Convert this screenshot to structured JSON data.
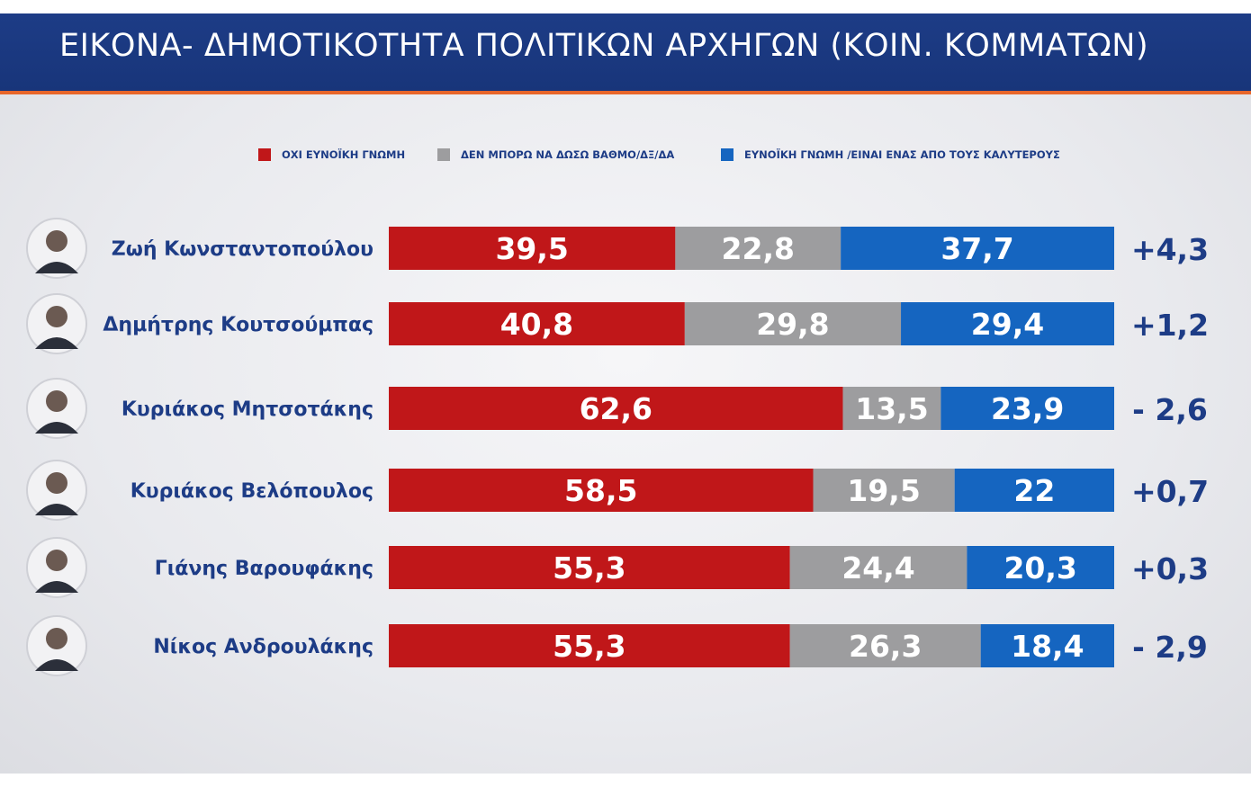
{
  "header": {
    "title": "ΕΙΚΟΝΑ- ΔΗΜΟΤΙΚΟΤΗΤΑ ΠΟΛΙΤΙΚΩΝ ΑΡΧΗΓΩΝ (ΚΟΙΝ. ΚΟΜΜΑΤΩΝ)"
  },
  "colors": {
    "negative": "#c01719",
    "neutral": "#9d9d9f",
    "positive": "#1565c0",
    "label": "#1d3c86",
    "header": "#1d3c86",
    "accent": "#e8662a"
  },
  "legend": [
    {
      "label": "ΟΧΙ ΕΥΝΟΪΚΗ ΓΝΩΜΗ",
      "color": "#c01719"
    },
    {
      "label": "ΔΕΝ ΜΠΟΡΩ ΝΑ ΔΩΣΩ ΒΑΘΜΟ/ΔΞ/ΔΑ",
      "color": "#9d9d9f"
    },
    {
      "label": "ΕΥΝΟΪΚΗ ΓΝΩΜΗ /ΕΙΝΑΙ ΕΝΑΣ ΑΠΟ ΤΟΥΣ ΚΑΛΥΤΕΡΟΥΣ",
      "color": "#1565c0"
    }
  ],
  "chart_data": {
    "type": "bar",
    "orientation": "horizontal",
    "stacked": true,
    "title": "ΕΙΚΟΝΑ- ΔΗΜΟΤΙΚΟΤΗΤΑ ΠΟΛΙΤΙΚΩΝ ΑΡΧΗΓΩΝ (ΚΟΙΝ. ΚΟΜΜΑΤΩΝ)",
    "categories": [
      "Ζωή Κωνσταντοπούλου",
      "Δημήτρης Κουτσούμπας",
      "Κυριάκος Μητσοτάκης",
      "Κυριάκος Βελόπουλος",
      "Γιάνης Βαρουφάκης",
      "Νίκος Ανδρουλάκης"
    ],
    "series": [
      {
        "name": "ΟΧΙ ΕΥΝΟΪΚΗ ΓΝΩΜΗ",
        "values": [
          39.5,
          40.8,
          62.6,
          58.5,
          55.3,
          55.3
        ],
        "labels": [
          "39,5",
          "40,8",
          "62,6",
          "58,5",
          "55,3",
          "55,3"
        ]
      },
      {
        "name": "ΔΕΝ ΜΠΟΡΩ ΝΑ ΔΩΣΩ ΒΑΘΜΟ/ΔΞ/ΔΑ",
        "values": [
          22.8,
          29.8,
          13.5,
          19.5,
          24.4,
          26.3
        ],
        "labels": [
          "22,8",
          "29,8",
          "13,5",
          "19,5",
          "24,4",
          "26,3"
        ]
      },
      {
        "name": "ΕΥΝΟΪΚΗ ΓΝΩΜΗ /ΕΙΝΑΙ ΕΝΑΣ ΑΠΟ ΤΟΥΣ ΚΑΛΥΤΕΡΟΥΣ",
        "values": [
          37.7,
          29.4,
          23.9,
          22,
          20.3,
          18.4
        ],
        "labels": [
          "37,7",
          "29,4",
          "23,9",
          "22",
          "20,3",
          "18,4"
        ]
      }
    ],
    "changes": [
      "+4,3",
      "+1,2",
      "- 2,6",
      "+0,7",
      "+0,3",
      "- 2,9"
    ],
    "xlim": [
      0,
      100
    ]
  }
}
